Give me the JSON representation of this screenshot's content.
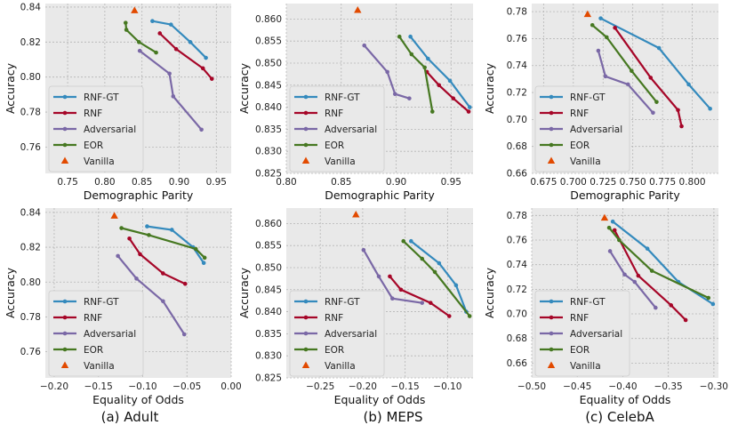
{
  "figure": {
    "captions": [
      "(a) Adult",
      "(b) MEPS",
      "(c) CelebA"
    ]
  },
  "chart_data": [
    {
      "type": "line",
      "title": "",
      "xlabel": "Demographic Parity",
      "ylabel": "Accuracy",
      "xlim": [
        0.72,
        0.97
      ],
      "ylim": [
        0.745,
        0.842
      ],
      "xticks": [
        0.75,
        0.8,
        0.85,
        0.9,
        0.95
      ],
      "xtick_labels": [
        "0.75",
        "0.80",
        "0.85",
        "0.90",
        "0.95"
      ],
      "yticks": [
        0.76,
        0.78,
        0.8,
        0.82,
        0.84
      ],
      "ytick_labels": [
        "0.76",
        "0.78",
        "0.80",
        "0.82",
        "0.84"
      ],
      "legend_position": "bottom-left",
      "series": [
        {
          "name": "RNF-GT",
          "color": "#348abd",
          "x": [
            0.864,
            0.889,
            0.915,
            0.936
          ],
          "y": [
            0.832,
            0.83,
            0.82,
            0.811
          ]
        },
        {
          "name": "RNF",
          "color": "#a60628",
          "x": [
            0.874,
            0.896,
            0.932,
            0.944
          ],
          "y": [
            0.825,
            0.816,
            0.805,
            0.799
          ]
        },
        {
          "name": "Adversarial",
          "color": "#7a68a6",
          "x": [
            0.847,
            0.887,
            0.892,
            0.93
          ],
          "y": [
            0.815,
            0.802,
            0.789,
            0.77
          ]
        },
        {
          "name": "EOR",
          "color": "#467821",
          "x": [
            0.828,
            0.829,
            0.846,
            0.869
          ],
          "y": [
            0.831,
            0.827,
            0.82,
            0.814
          ]
        },
        {
          "name": "Vanilla",
          "color": "#e24a00",
          "marker": "triangle",
          "x": [
            0.84
          ],
          "y": [
            0.838
          ]
        }
      ]
    },
    {
      "type": "line",
      "title": "",
      "xlabel": "Demographic Parity",
      "ylabel": "Accuracy",
      "xlim": [
        0.8,
        0.97
      ],
      "ylim": [
        0.825,
        0.8635
      ],
      "xticks": [
        0.8,
        0.85,
        0.9,
        0.95
      ],
      "xtick_labels": [
        "0.80",
        "0.85",
        "0.90",
        "0.95"
      ],
      "yticks": [
        0.825,
        0.83,
        0.835,
        0.84,
        0.845,
        0.85,
        0.855,
        0.86
      ],
      "ytick_labels": [
        "0.825",
        "0.830",
        "0.835",
        "0.840",
        "0.845",
        "0.850",
        "0.855",
        "0.860"
      ],
      "legend_position": "bottom-left",
      "series": [
        {
          "name": "RNF-GT",
          "color": "#348abd",
          "x": [
            0.913,
            0.929,
            0.949,
            0.967
          ],
          "y": [
            0.856,
            0.851,
            0.846,
            0.84
          ]
        },
        {
          "name": "RNF",
          "color": "#a60628",
          "x": [
            0.928,
            0.939,
            0.952,
            0.966
          ],
          "y": [
            0.848,
            0.845,
            0.842,
            0.839
          ]
        },
        {
          "name": "Adversarial",
          "color": "#7a68a6",
          "x": [
            0.871,
            0.892,
            0.899,
            0.912
          ],
          "y": [
            0.854,
            0.848,
            0.843,
            0.842
          ]
        },
        {
          "name": "EOR",
          "color": "#467821",
          "x": [
            0.903,
            0.914,
            0.926,
            0.933
          ],
          "y": [
            0.856,
            0.852,
            0.849,
            0.839
          ]
        },
        {
          "name": "Vanilla",
          "color": "#e24a00",
          "marker": "triangle",
          "x": [
            0.865
          ],
          "y": [
            0.862
          ]
        }
      ]
    },
    {
      "type": "line",
      "title": "",
      "xlabel": "Demographic Parity",
      "ylabel": "Accuracy",
      "xlim": [
        0.665,
        0.822
      ],
      "ylim": [
        0.66,
        0.786
      ],
      "xticks": [
        0.675,
        0.7,
        0.725,
        0.75,
        0.775,
        0.8
      ],
      "xtick_labels": [
        "0.675",
        "0.700",
        "0.725",
        "0.750",
        "0.775",
        "0.800"
      ],
      "yticks": [
        0.66,
        0.68,
        0.7,
        0.72,
        0.74,
        0.76,
        0.78
      ],
      "ytick_labels": [
        "0.66",
        "0.68",
        "0.70",
        "0.72",
        "0.74",
        "0.76",
        "0.78"
      ],
      "legend_position": "bottom-left",
      "series": [
        {
          "name": "RNF-GT",
          "color": "#348abd",
          "x": [
            0.723,
            0.772,
            0.797,
            0.815
          ],
          "y": [
            0.775,
            0.753,
            0.726,
            0.708
          ]
        },
        {
          "name": "RNF",
          "color": "#a60628",
          "x": [
            0.735,
            0.765,
            0.788,
            0.791
          ],
          "y": [
            0.768,
            0.731,
            0.707,
            0.695
          ]
        },
        {
          "name": "Adversarial",
          "color": "#7a68a6",
          "x": [
            0.721,
            0.727,
            0.746,
            0.767
          ],
          "y": [
            0.751,
            0.732,
            0.726,
            0.705
          ]
        },
        {
          "name": "EOR",
          "color": "#467821",
          "x": [
            0.716,
            0.728,
            0.749,
            0.77
          ],
          "y": [
            0.77,
            0.761,
            0.736,
            0.713
          ]
        },
        {
          "name": "Vanilla",
          "color": "#e24a00",
          "marker": "triangle",
          "x": [
            0.712
          ],
          "y": [
            0.778
          ]
        }
      ]
    },
    {
      "type": "line",
      "title": "",
      "xlabel": "Equality of Odds",
      "ylabel": "Accuracy",
      "xlim": [
        -0.21,
        0.0
      ],
      "ylim": [
        0.745,
        0.8425
      ],
      "xticks": [
        -0.2,
        -0.15,
        -0.1,
        -0.05,
        0.0
      ],
      "xtick_labels": [
        "−0.20",
        "−0.15",
        "−0.10",
        "−0.05",
        "0.00"
      ],
      "yticks": [
        0.76,
        0.78,
        0.8,
        0.82,
        0.84
      ],
      "ytick_labels": [
        "0.76",
        "0.78",
        "0.80",
        "0.82",
        "0.84"
      ],
      "legend_position": "bottom-left",
      "series": [
        {
          "name": "RNF-GT",
          "color": "#348abd",
          "x": [
            -0.095,
            -0.067,
            -0.043,
            -0.031
          ],
          "y": [
            0.832,
            0.83,
            0.82,
            0.811
          ]
        },
        {
          "name": "RNF",
          "color": "#a60628",
          "x": [
            -0.115,
            -0.103,
            -0.077,
            -0.052
          ],
          "y": [
            0.825,
            0.816,
            0.805,
            0.799
          ]
        },
        {
          "name": "Adversarial",
          "color": "#7a68a6",
          "x": [
            -0.128,
            -0.107,
            -0.077,
            -0.053
          ],
          "y": [
            0.815,
            0.802,
            0.789,
            0.77
          ]
        },
        {
          "name": "EOR",
          "color": "#467821",
          "x": [
            -0.124,
            -0.093,
            -0.04,
            -0.03
          ],
          "y": [
            0.831,
            0.827,
            0.819,
            0.814
          ]
        },
        {
          "name": "Vanilla",
          "color": "#e24a00",
          "marker": "triangle",
          "x": [
            -0.132
          ],
          "y": [
            0.838
          ]
        }
      ]
    },
    {
      "type": "line",
      "title": "",
      "xlabel": "Equality of Odds",
      "ylabel": "Accuracy",
      "xlim": [
        -0.29,
        -0.07
      ],
      "ylim": [
        0.825,
        0.8635
      ],
      "xticks": [
        -0.25,
        -0.2,
        -0.15,
        -0.1
      ],
      "xtick_labels": [
        "−0.25",
        "−0.20",
        "−0.15",
        "−0.10"
      ],
      "yticks": [
        0.825,
        0.83,
        0.835,
        0.84,
        0.845,
        0.85,
        0.855,
        0.86
      ],
      "ytick_labels": [
        "0.825",
        "0.830",
        "0.835",
        "0.840",
        "0.845",
        "0.850",
        "0.855",
        "0.860"
      ],
      "legend_position": "bottom-left",
      "series": [
        {
          "name": "RNF-GT",
          "color": "#348abd",
          "x": [
            -0.143,
            -0.11,
            -0.09,
            -0.078
          ],
          "y": [
            0.856,
            0.851,
            0.846,
            0.84
          ]
        },
        {
          "name": "RNF",
          "color": "#a60628",
          "x": [
            -0.168,
            -0.155,
            -0.12,
            -0.098
          ],
          "y": [
            0.848,
            0.845,
            0.842,
            0.839
          ]
        },
        {
          "name": "Adversarial",
          "color": "#7a68a6",
          "x": [
            -0.199,
            -0.181,
            -0.165,
            -0.13
          ],
          "y": [
            0.854,
            0.848,
            0.843,
            0.842
          ]
        },
        {
          "name": "EOR",
          "color": "#467821",
          "x": [
            -0.152,
            -0.13,
            -0.115,
            -0.074
          ],
          "y": [
            0.856,
            0.852,
            0.849,
            0.839
          ]
        },
        {
          "name": "Vanilla",
          "color": "#e24a00",
          "marker": "triangle",
          "x": [
            -0.208
          ],
          "y": [
            0.862
          ]
        }
      ]
    },
    {
      "type": "line",
      "title": "",
      "xlabel": "Equality of Odds",
      "ylabel": "Accuracy",
      "xlim": [
        -0.5,
        -0.295
      ],
      "ylim": [
        0.648,
        0.786
      ],
      "xticks": [
        -0.5,
        -0.45,
        -0.4,
        -0.35,
        -0.3
      ],
      "xtick_labels": [
        "−0.50",
        "−0.45",
        "−0.40",
        "−0.35",
        "−0.30"
      ],
      "yticks": [
        0.66,
        0.68,
        0.7,
        0.72,
        0.74,
        0.76,
        0.78
      ],
      "ytick_labels": [
        "0.66",
        "0.68",
        "0.70",
        "0.72",
        "0.74",
        "0.76",
        "0.78"
      ],
      "legend_position": "bottom-left",
      "series": [
        {
          "name": "RNF-GT",
          "color": "#348abd",
          "x": [
            -0.411,
            -0.373,
            -0.339,
            -0.301
          ],
          "y": [
            0.775,
            0.753,
            0.726,
            0.708
          ]
        },
        {
          "name": "RNF",
          "color": "#a60628",
          "x": [
            -0.409,
            -0.383,
            -0.347,
            -0.331
          ],
          "y": [
            0.768,
            0.731,
            0.707,
            0.695
          ]
        },
        {
          "name": "Adversarial",
          "color": "#7a68a6",
          "x": [
            -0.414,
            -0.398,
            -0.387,
            -0.364
          ],
          "y": [
            0.751,
            0.732,
            0.726,
            0.705
          ]
        },
        {
          "name": "EOR",
          "color": "#467821",
          "x": [
            -0.415,
            -0.404,
            -0.368,
            -0.306
          ],
          "y": [
            0.77,
            0.76,
            0.735,
            0.713
          ]
        },
        {
          "name": "Vanilla",
          "color": "#e24a00",
          "marker": "triangle",
          "x": [
            -0.42
          ],
          "y": [
            0.778
          ]
        }
      ]
    }
  ]
}
